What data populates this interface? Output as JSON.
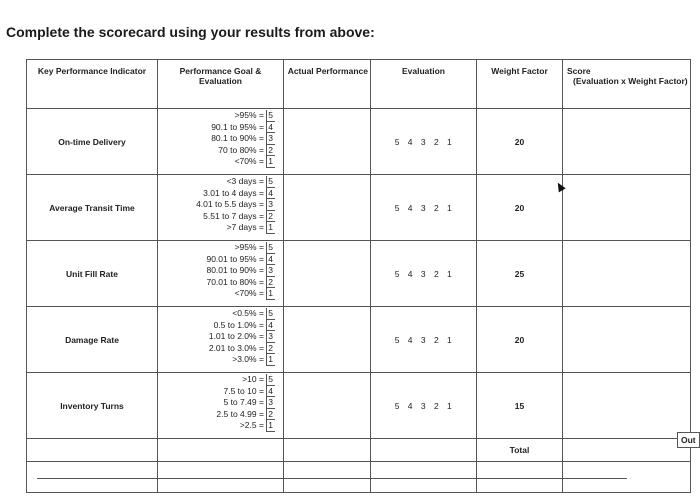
{
  "heading": "Complete the scorecard using your results from above:",
  "headers": {
    "kpi": "Key Performance Indicator",
    "goal_line1": "Performance Goal &",
    "goal_line2": "Evaluation",
    "actual": "Actual Performance",
    "evaluation": "Evaluation",
    "weight": "Weight Factor",
    "score_line1": "Score",
    "score_line2": "(Evaluation x Weight Factor)"
  },
  "rows": [
    {
      "kpi": "On-time Delivery",
      "goals": [
        [
          ">95%",
          "5"
        ],
        [
          "90.1 to 95%",
          "4"
        ],
        [
          "80.1 to 90%",
          "3"
        ],
        [
          "70 to 80%",
          "2"
        ],
        [
          "<70%",
          "1"
        ]
      ],
      "evaluation": "5 4 3 2 1",
      "weight": "20"
    },
    {
      "kpi": "Average Transit Time",
      "goals": [
        [
          "<3 days",
          "5"
        ],
        [
          "3.01 to 4 days",
          "4"
        ],
        [
          "4.01 to 5.5 days",
          "3"
        ],
        [
          "5.51 to 7 days",
          "2"
        ],
        [
          ">7 days",
          "1"
        ]
      ],
      "evaluation": "5 4 3 2 1",
      "weight": "20"
    },
    {
      "kpi": "Unit Fill Rate",
      "goals": [
        [
          ">95%",
          "5"
        ],
        [
          "90.01 to 95%",
          "4"
        ],
        [
          "80.01 to 90%",
          "3"
        ],
        [
          "70.01 to 80%",
          "2"
        ],
        [
          "<70%",
          "1"
        ]
      ],
      "evaluation": "5 4 3 2 1",
      "weight": "25"
    },
    {
      "kpi": "Damage Rate",
      "goals": [
        [
          "<0.5%",
          "5"
        ],
        [
          "0.5 to 1.0%",
          "4"
        ],
        [
          "1.01 to 2.0%",
          "3"
        ],
        [
          "2.01 to 3.0%",
          "2"
        ],
        [
          ">3.0%",
          "1"
        ]
      ],
      "evaluation": "5 4 3 2 1",
      "weight": "20"
    },
    {
      "kpi": "Inventory Turns",
      "goals": [
        [
          ">10",
          "5"
        ],
        [
          "7.5 to 10",
          "4"
        ],
        [
          "5 to 7.49",
          "3"
        ],
        [
          "2.5 to 4.99",
          "2"
        ],
        [
          ">2.5",
          "1"
        ]
      ],
      "evaluation": "5 4 3 2 1",
      "weight": "15"
    }
  ],
  "total_label": "Total",
  "overflow_label": "Out"
}
